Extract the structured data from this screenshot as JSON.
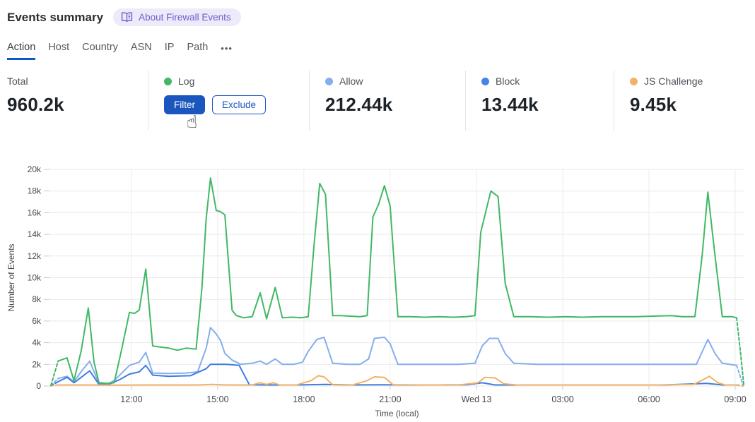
{
  "header": {
    "title": "Events summary",
    "about_badge": "About Firewall Events"
  },
  "tabs": {
    "items": [
      {
        "label": "Action",
        "active": true
      },
      {
        "label": "Host",
        "active": false
      },
      {
        "label": "Country",
        "active": false
      },
      {
        "label": "ASN",
        "active": false
      },
      {
        "label": "IP",
        "active": false
      },
      {
        "label": "Path",
        "active": false
      }
    ],
    "more_label": "•••"
  },
  "stats": {
    "columns": [
      {
        "label": "Total",
        "value": "960.2k"
      },
      {
        "label": "Log",
        "dot_color": "#41b866",
        "filter_label": "Filter",
        "exclude_label": "Exclude"
      },
      {
        "label": "Allow",
        "dot_color": "#85aeed",
        "value": "212.44k"
      },
      {
        "label": "Block",
        "dot_color": "#4584e9",
        "value": "13.44k"
      },
      {
        "label": "JS Challenge",
        "dot_color": "#f2b168",
        "value": "9.45k"
      }
    ]
  },
  "colors": {
    "accent_blue": "#1b56bf",
    "tab_underline": "#1057c5",
    "badge_purple": "#6a61ce"
  },
  "chart_data": {
    "type": "line",
    "xlabel": "Time (local)",
    "ylabel": "Number of Events",
    "x_unit": "hours offset from 09:00 (Tue); 24 = 09:00 Wed",
    "x_domain": [
      0.15,
      24.32
    ],
    "ylim": [
      0,
      20000
    ],
    "grid": true,
    "legend_position": "stats-row-above-chart",
    "y_ticks": [
      {
        "value": 0,
        "label": "0"
      },
      {
        "value": 2000,
        "label": "2k"
      },
      {
        "value": 4000,
        "label": "4k"
      },
      {
        "value": 6000,
        "label": "6k"
      },
      {
        "value": 8000,
        "label": "8k"
      },
      {
        "value": 10000,
        "label": "10k"
      },
      {
        "value": 12000,
        "label": "12k"
      },
      {
        "value": 14000,
        "label": "14k"
      },
      {
        "value": 16000,
        "label": "16k"
      },
      {
        "value": 18000,
        "label": "18k"
      },
      {
        "value": 20000,
        "label": "20k"
      }
    ],
    "x_ticks": [
      {
        "h": 3,
        "label": "12:00"
      },
      {
        "h": 6,
        "label": "15:00"
      },
      {
        "h": 9,
        "label": "18:00"
      },
      {
        "h": 12,
        "label": "21:00"
      },
      {
        "h": 15,
        "label": "Wed 13"
      },
      {
        "h": 18,
        "label": "03:00"
      },
      {
        "h": 21,
        "label": "06:00"
      },
      {
        "h": 24,
        "label": "09:00"
      }
    ],
    "value_unit": "thousands of events",
    "series": [
      {
        "name": "Allow",
        "color": "#85aeed",
        "values_k": [
          [
            0.45,
            0.7
          ],
          [
            0.76,
            0.9
          ],
          [
            1.0,
            0.4
          ],
          [
            1.3,
            1.5
          ],
          [
            1.55,
            2.3
          ],
          [
            1.87,
            0.2
          ],
          [
            2.15,
            0.15
          ],
          [
            2.4,
            0.5
          ],
          [
            2.93,
            1.9
          ],
          [
            3.27,
            2.2
          ],
          [
            3.5,
            3.1
          ],
          [
            3.74,
            1.2
          ],
          [
            4.3,
            1.15
          ],
          [
            4.9,
            1.2
          ],
          [
            5.3,
            1.3
          ],
          [
            5.6,
            3.5
          ],
          [
            5.75,
            5.4
          ],
          [
            5.95,
            4.8
          ],
          [
            6.1,
            4.2
          ],
          [
            6.25,
            3.0
          ],
          [
            6.5,
            2.4
          ],
          [
            6.8,
            2.0
          ],
          [
            7.2,
            2.1
          ],
          [
            7.48,
            2.3
          ],
          [
            7.7,
            2.0
          ],
          [
            8.0,
            2.5
          ],
          [
            8.25,
            2.0
          ],
          [
            8.65,
            2.0
          ],
          [
            8.95,
            2.2
          ],
          [
            9.15,
            3.2
          ],
          [
            9.45,
            4.3
          ],
          [
            9.7,
            4.5
          ],
          [
            10.0,
            2.1
          ],
          [
            10.5,
            2.0
          ],
          [
            10.95,
            2.0
          ],
          [
            11.25,
            2.5
          ],
          [
            11.45,
            4.4
          ],
          [
            11.8,
            4.5
          ],
          [
            12.0,
            3.9
          ],
          [
            12.27,
            2.0
          ],
          [
            12.9,
            2.0
          ],
          [
            13.7,
            2.0
          ],
          [
            14.4,
            2.0
          ],
          [
            14.95,
            2.1
          ],
          [
            15.2,
            3.7
          ],
          [
            15.45,
            4.4
          ],
          [
            15.75,
            4.4
          ],
          [
            16.0,
            3.0
          ],
          [
            16.3,
            2.1
          ],
          [
            17.1,
            2.0
          ],
          [
            18.1,
            2.0
          ],
          [
            19.1,
            2.0
          ],
          [
            20.05,
            2.0
          ],
          [
            21.05,
            2.0
          ],
          [
            22.05,
            2.0
          ],
          [
            22.65,
            2.0
          ],
          [
            23.05,
            4.3
          ],
          [
            23.3,
            3.0
          ],
          [
            23.55,
            2.1
          ],
          [
            24.05,
            1.9
          ]
        ],
        "dashed_lead_k": [
          [
            0.2,
            0.02
          ],
          [
            0.45,
            0.7
          ]
        ],
        "dashed_tail_k": [
          [
            24.05,
            1.9
          ],
          [
            24.28,
            0.05
          ]
        ]
      },
      {
        "name": "Block",
        "color": "#3f7ce2",
        "values_k": [
          [
            0.45,
            0.4
          ],
          [
            0.76,
            0.8
          ],
          [
            1.0,
            0.3
          ],
          [
            1.3,
            0.9
          ],
          [
            1.55,
            1.4
          ],
          [
            1.87,
            0.15
          ],
          [
            2.25,
            0.2
          ],
          [
            2.6,
            0.6
          ],
          [
            2.93,
            1.1
          ],
          [
            3.27,
            1.3
          ],
          [
            3.5,
            1.9
          ],
          [
            3.74,
            1.0
          ],
          [
            4.3,
            0.9
          ],
          [
            5.05,
            0.95
          ],
          [
            5.6,
            1.6
          ],
          [
            5.75,
            2.0
          ],
          [
            6.3,
            2.0
          ],
          [
            6.75,
            1.9
          ],
          [
            7.1,
            0.12
          ],
          [
            7.8,
            0.1
          ],
          [
            8.75,
            0.1
          ],
          [
            9.75,
            0.15
          ],
          [
            10.7,
            0.1
          ],
          [
            11.7,
            0.12
          ],
          [
            12.7,
            0.1
          ],
          [
            13.7,
            0.1
          ],
          [
            14.65,
            0.12
          ],
          [
            15.2,
            0.3
          ],
          [
            15.65,
            0.1
          ],
          [
            17.1,
            0.1
          ],
          [
            18.6,
            0.1
          ],
          [
            20.05,
            0.1
          ],
          [
            21.55,
            0.1
          ],
          [
            23.0,
            0.25
          ],
          [
            23.55,
            0.1
          ],
          [
            24.05,
            0.1
          ]
        ],
        "dashed_lead_k": [
          [
            0.2,
            0.02
          ],
          [
            0.45,
            0.4
          ]
        ],
        "dashed_tail_k": [
          [
            24.05,
            0.1
          ],
          [
            24.28,
            0.02
          ]
        ]
      },
      {
        "name": "JS Challenge",
        "color": "#f2b168",
        "values_k": [
          [
            0.45,
            0.1
          ],
          [
            1.4,
            0.1
          ],
          [
            2.35,
            0.08
          ],
          [
            3.35,
            0.1
          ],
          [
            4.3,
            0.1
          ],
          [
            5.3,
            0.1
          ],
          [
            5.8,
            0.15
          ],
          [
            6.3,
            0.1
          ],
          [
            7.2,
            0.1
          ],
          [
            7.48,
            0.3
          ],
          [
            7.7,
            0.15
          ],
          [
            7.95,
            0.3
          ],
          [
            8.15,
            0.1
          ],
          [
            8.75,
            0.1
          ],
          [
            9.25,
            0.5
          ],
          [
            9.5,
            0.95
          ],
          [
            9.7,
            0.85
          ],
          [
            10.0,
            0.12
          ],
          [
            10.7,
            0.1
          ],
          [
            11.2,
            0.5
          ],
          [
            11.45,
            0.85
          ],
          [
            11.8,
            0.8
          ],
          [
            12.1,
            0.12
          ],
          [
            13.2,
            0.1
          ],
          [
            14.4,
            0.1
          ],
          [
            15.05,
            0.3
          ],
          [
            15.3,
            0.8
          ],
          [
            15.65,
            0.75
          ],
          [
            15.95,
            0.2
          ],
          [
            16.4,
            0.1
          ],
          [
            17.6,
            0.1
          ],
          [
            18.85,
            0.1
          ],
          [
            20.05,
            0.1
          ],
          [
            21.3,
            0.1
          ],
          [
            22.55,
            0.15
          ],
          [
            22.9,
            0.6
          ],
          [
            23.1,
            0.9
          ],
          [
            23.4,
            0.3
          ],
          [
            23.65,
            0.1
          ],
          [
            24.05,
            0.1
          ]
        ],
        "dashed_lead_k": [
          [
            0.2,
            0.02
          ],
          [
            0.45,
            0.1
          ]
        ],
        "dashed_tail_k": [
          [
            24.05,
            0.1
          ],
          [
            24.28,
            0.02
          ]
        ]
      },
      {
        "name": "Log",
        "color": "#41b866",
        "values_k": [
          [
            0.45,
            2.3
          ],
          [
            0.76,
            2.6
          ],
          [
            1.0,
            0.5
          ],
          [
            1.25,
            3.2
          ],
          [
            1.5,
            7.2
          ],
          [
            1.7,
            2.2
          ],
          [
            1.87,
            0.3
          ],
          [
            2.15,
            0.25
          ],
          [
            2.4,
            0.3
          ],
          [
            2.67,
            3.5
          ],
          [
            2.93,
            6.8
          ],
          [
            3.1,
            6.7
          ],
          [
            3.27,
            7.0
          ],
          [
            3.5,
            10.8
          ],
          [
            3.74,
            3.7
          ],
          [
            4.0,
            3.6
          ],
          [
            4.3,
            3.5
          ],
          [
            4.6,
            3.3
          ],
          [
            4.9,
            3.5
          ],
          [
            5.25,
            3.4
          ],
          [
            5.45,
            9.0
          ],
          [
            5.6,
            15.5
          ],
          [
            5.75,
            19.2
          ],
          [
            5.95,
            16.2
          ],
          [
            6.1,
            16.1
          ],
          [
            6.25,
            15.8
          ],
          [
            6.5,
            7.0
          ],
          [
            6.65,
            6.5
          ],
          [
            6.9,
            6.3
          ],
          [
            7.2,
            6.4
          ],
          [
            7.48,
            8.6
          ],
          [
            7.7,
            6.2
          ],
          [
            8.0,
            9.1
          ],
          [
            8.25,
            6.3
          ],
          [
            8.6,
            6.35
          ],
          [
            8.9,
            6.3
          ],
          [
            9.15,
            6.4
          ],
          [
            9.35,
            13.0
          ],
          [
            9.55,
            18.7
          ],
          [
            9.75,
            17.7
          ],
          [
            10.0,
            6.5
          ],
          [
            10.3,
            6.5
          ],
          [
            10.6,
            6.45
          ],
          [
            10.95,
            6.4
          ],
          [
            11.2,
            6.5
          ],
          [
            11.4,
            15.6
          ],
          [
            11.6,
            16.8
          ],
          [
            11.8,
            18.5
          ],
          [
            12.0,
            16.6
          ],
          [
            12.27,
            6.4
          ],
          [
            12.7,
            6.4
          ],
          [
            13.2,
            6.35
          ],
          [
            13.7,
            6.4
          ],
          [
            14.2,
            6.35
          ],
          [
            14.65,
            6.4
          ],
          [
            14.95,
            6.5
          ],
          [
            15.15,
            14.2
          ],
          [
            15.5,
            18.0
          ],
          [
            15.75,
            17.5
          ],
          [
            16.0,
            9.5
          ],
          [
            16.3,
            6.4
          ],
          [
            16.9,
            6.4
          ],
          [
            17.5,
            6.35
          ],
          [
            18.1,
            6.4
          ],
          [
            18.7,
            6.35
          ],
          [
            19.3,
            6.4
          ],
          [
            19.95,
            6.4
          ],
          [
            20.55,
            6.4
          ],
          [
            21.15,
            6.45
          ],
          [
            21.8,
            6.5
          ],
          [
            22.15,
            6.4
          ],
          [
            22.6,
            6.4
          ],
          [
            22.85,
            12.0
          ],
          [
            23.05,
            17.9
          ],
          [
            23.3,
            12.0
          ],
          [
            23.55,
            6.4
          ],
          [
            23.9,
            6.4
          ],
          [
            24.05,
            6.3
          ]
        ],
        "dashed_lead_k": [
          [
            0.2,
            0.05
          ],
          [
            0.45,
            2.3
          ]
        ],
        "dashed_tail_k": [
          [
            24.05,
            6.3
          ],
          [
            24.18,
            3.2
          ],
          [
            24.3,
            0.1
          ]
        ]
      }
    ]
  }
}
